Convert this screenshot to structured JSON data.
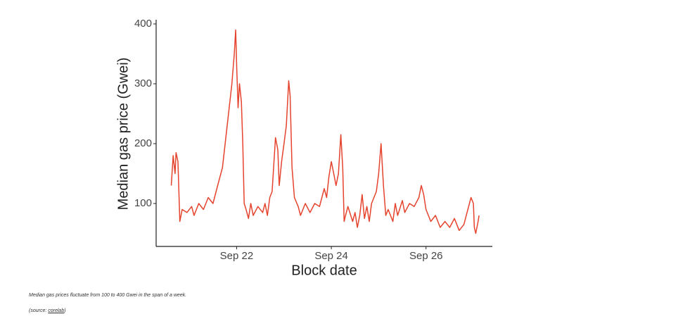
{
  "chart_data": {
    "type": "line",
    "xlabel": "Block date",
    "ylabel": "Median gas price (Gwei)",
    "color": "#e5432d",
    "x": [
      20.62,
      20.66,
      20.7,
      20.72,
      20.76,
      20.8,
      20.85,
      20.95,
      21.05,
      21.1,
      21.2,
      21.3,
      21.4,
      21.5,
      21.6,
      21.7,
      21.8,
      21.9,
      21.95,
      21.98,
      22.0,
      22.03,
      22.06,
      22.1,
      22.13,
      22.16,
      22.2,
      22.25,
      22.3,
      22.35,
      22.45,
      22.55,
      22.6,
      22.65,
      22.7,
      22.75,
      22.82,
      22.87,
      22.9,
      22.95,
      23.0,
      23.05,
      23.1,
      23.13,
      23.17,
      23.22,
      23.3,
      23.35,
      23.45,
      23.55,
      23.65,
      23.75,
      23.85,
      23.9,
      23.95,
      24.0,
      24.05,
      24.1,
      24.15,
      24.2,
      24.24,
      24.27,
      24.3,
      24.35,
      24.45,
      24.5,
      24.55,
      24.6,
      24.65,
      24.7,
      24.75,
      24.8,
      24.85,
      24.95,
      25.0,
      25.05,
      25.1,
      25.15,
      25.2,
      25.3,
      25.35,
      25.4,
      25.5,
      25.55,
      25.65,
      25.75,
      25.85,
      25.9,
      25.95,
      26.0,
      26.1,
      26.2,
      26.3,
      26.4,
      26.5,
      26.6,
      26.7,
      26.8,
      26.9,
      26.95,
      27.0,
      27.02,
      27.05,
      27.1,
      27.12
    ],
    "values": [
      130,
      180,
      150,
      185,
      170,
      70,
      90,
      85,
      95,
      80,
      100,
      90,
      110,
      100,
      130,
      160,
      230,
      300,
      350,
      390,
      330,
      260,
      300,
      270,
      200,
      100,
      90,
      75,
      100,
      80,
      95,
      85,
      100,
      80,
      110,
      120,
      210,
      190,
      130,
      170,
      200,
      230,
      305,
      280,
      160,
      110,
      95,
      80,
      100,
      85,
      100,
      95,
      125,
      110,
      145,
      170,
      150,
      130,
      150,
      215,
      160,
      70,
      80,
      95,
      70,
      85,
      60,
      80,
      115,
      75,
      95,
      70,
      100,
      120,
      150,
      200,
      130,
      80,
      90,
      70,
      100,
      80,
      105,
      85,
      100,
      95,
      110,
      130,
      115,
      90,
      70,
      80,
      60,
      70,
      60,
      75,
      55,
      65,
      95,
      110,
      100,
      60,
      50,
      70,
      80
    ],
    "xlim": [
      20.3,
      27.4
    ],
    "ylim": [
      30,
      400
    ],
    "xticks": [
      {
        "value": 22,
        "label": "Sep 22"
      },
      {
        "value": 24,
        "label": "Sep 24"
      },
      {
        "value": 26,
        "label": "Sep 26"
      }
    ],
    "yticks": [
      100,
      200,
      300,
      400
    ]
  },
  "caption": "Median gas prices fluctuate from 100 to 400 Gwei in the span of a week.",
  "source": {
    "prefix": "(source:",
    "link": "corelab",
    "suffix": ")"
  }
}
